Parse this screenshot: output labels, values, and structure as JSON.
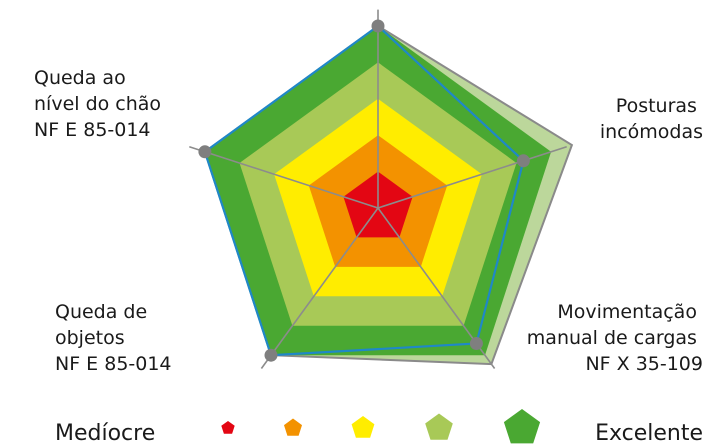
{
  "chart_data": {
    "type": "radar",
    "scale_max": 5,
    "axes": [
      {
        "name": "top",
        "lines": []
      },
      {
        "name": "posturas",
        "lines": [
          "Posturas",
          "incómodas"
        ]
      },
      {
        "name": "movimentacao",
        "lines": [
          "Movimentação",
          "manual de cargas",
          "NF X 35-109"
        ]
      },
      {
        "name": "queda-objetos",
        "lines": [
          "Queda de",
          "objetos",
          "NF E 85-014"
        ]
      },
      {
        "name": "queda-nivel",
        "lines": [
          "Queda ao",
          "nível do chão",
          "NF E 85-014"
        ]
      }
    ],
    "levels": [
      {
        "name": "level-1",
        "color": "#e30613"
      },
      {
        "name": "level-2",
        "color": "#f39200"
      },
      {
        "name": "level-3",
        "color": "#ffed00"
      },
      {
        "name": "level-4",
        "color": "#a8c957"
      },
      {
        "name": "level-5",
        "color": "#4aa832"
      }
    ],
    "series": [
      {
        "values": [
          5,
          5.6,
          5.3,
          5,
          5
        ],
        "fill": "#bcd79b",
        "stroke": "#8a8a8a"
      },
      {
        "values": [
          5,
          4.2,
          4.6,
          5,
          5
        ],
        "fill": "none",
        "stroke": "#1f88c7",
        "markers": true
      }
    ],
    "legend": {
      "low_label": "Medíocre",
      "high_label": "Excelente"
    }
  }
}
